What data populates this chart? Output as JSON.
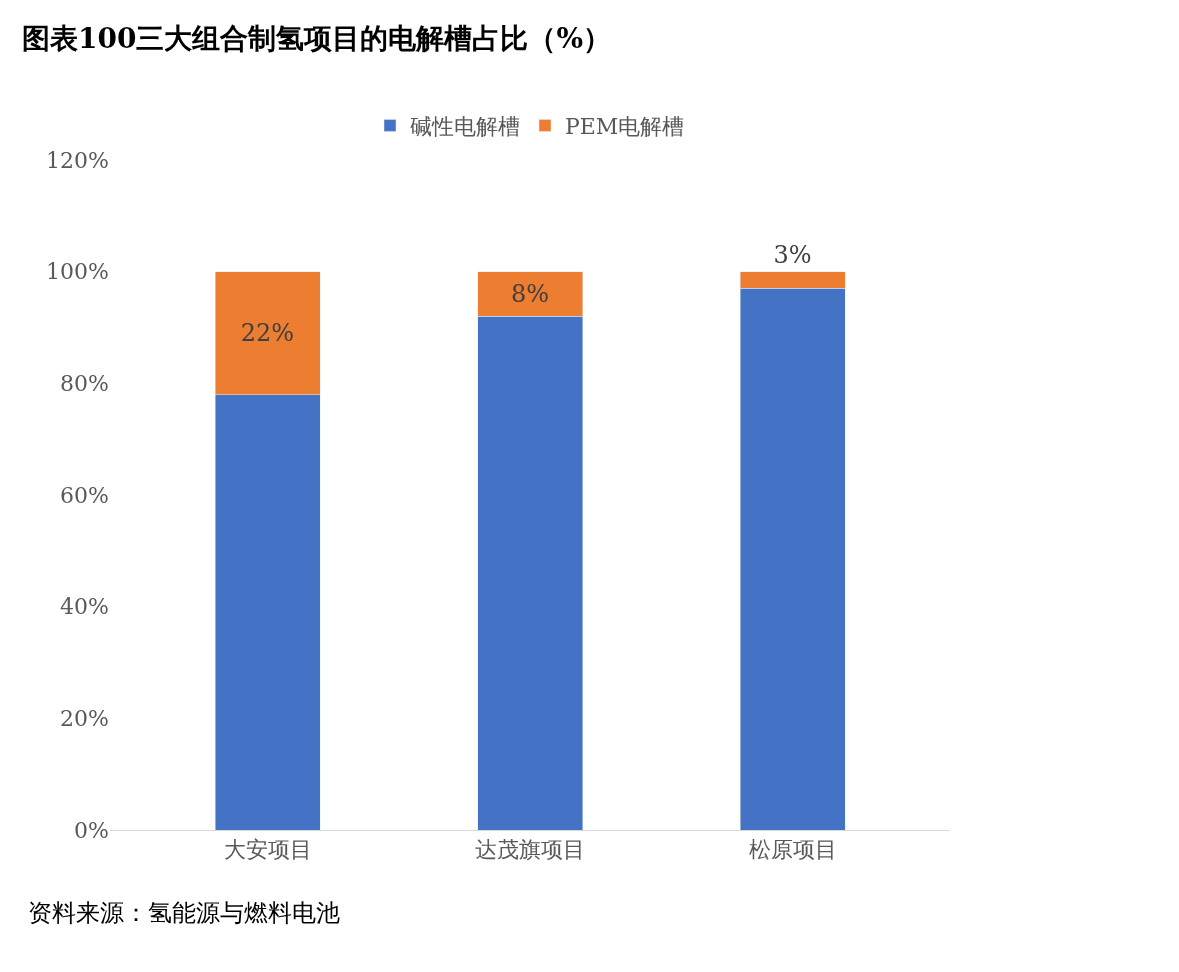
{
  "chart_data": {
    "type": "bar",
    "title": "图表100三大组合制氢项目的电解槽占比（%）",
    "categories": [
      "大安项目",
      "达茂旗项目",
      "松原项目"
    ],
    "stacked": true,
    "series": [
      {
        "name": "碱性电解槽",
        "color": "#4472c4",
        "values": [
          78,
          92,
          97
        ]
      },
      {
        "name": "PEM电解槽",
        "color": "#ed7d31",
        "values": [
          22,
          8,
          3
        ],
        "value_labels": [
          "22%",
          "8%",
          "3%"
        ]
      }
    ],
    "ylim": [
      0,
      120
    ],
    "yticks": [
      {
        "value": 0,
        "label": "0%"
      },
      {
        "value": 20,
        "label": "20%"
      },
      {
        "value": 40,
        "label": "40%"
      },
      {
        "value": 60,
        "label": "60%"
      },
      {
        "value": 80,
        "label": "80%"
      },
      {
        "value": 100,
        "label": "100%"
      },
      {
        "value": 120,
        "label": "120%"
      }
    ],
    "legend": "top",
    "annotations": [
      "资料来源：氢能源与燃料电池"
    ]
  }
}
